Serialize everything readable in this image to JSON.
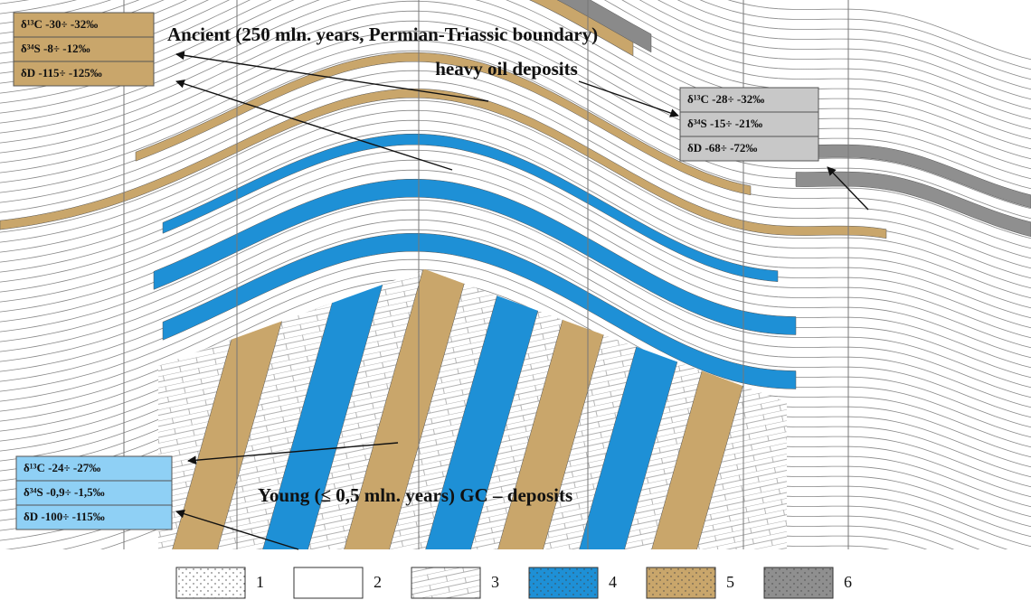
{
  "title_ancient": "Ancient (250 mln. years, Permian-Triassic boundary)",
  "title_heavy_oil": "heavy oil deposits",
  "title_young": "Young (≤ 0,5 mln. years)  GC – deposits",
  "box_ancient": [
    "δ¹³C  -30÷ -32‰",
    "δ³⁴S   -8÷ -12‰",
    "δD  -115÷ -125‰"
  ],
  "box_heavy": [
    "δ¹³C  -28÷ -32‰",
    "δ³⁴S  -15÷ -21‰",
    "δD   -68÷ -72‰"
  ],
  "box_young": [
    "δ¹³C  -24÷ -27‰",
    "δ³⁴S  -0,9÷ -1,5‰",
    "δD  -100÷ -115‰"
  ],
  "legend": [
    "1",
    "2",
    "3",
    "4",
    "5",
    "6"
  ]
}
